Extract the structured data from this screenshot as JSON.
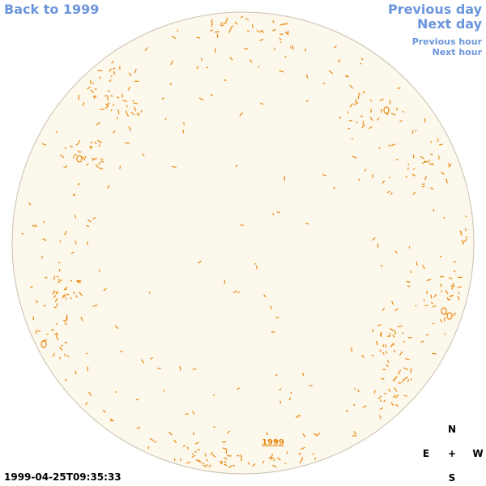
{
  "nav": {
    "back": "Back to 1999",
    "previous_day": "Previous day",
    "next_day": "Next day",
    "previous_hour": "Previous hour",
    "next_hour": "Next hour"
  },
  "disk": {
    "fill_color": "#fdf8ec",
    "limb_color": "#c8c0b0",
    "feature_color": "#e8870f",
    "year_label": "1999"
  },
  "compass": {
    "n": "N",
    "e": "E",
    "center": "+",
    "w": "W",
    "s": "S"
  },
  "timestamp": "1999-04-25T09:35:33"
}
